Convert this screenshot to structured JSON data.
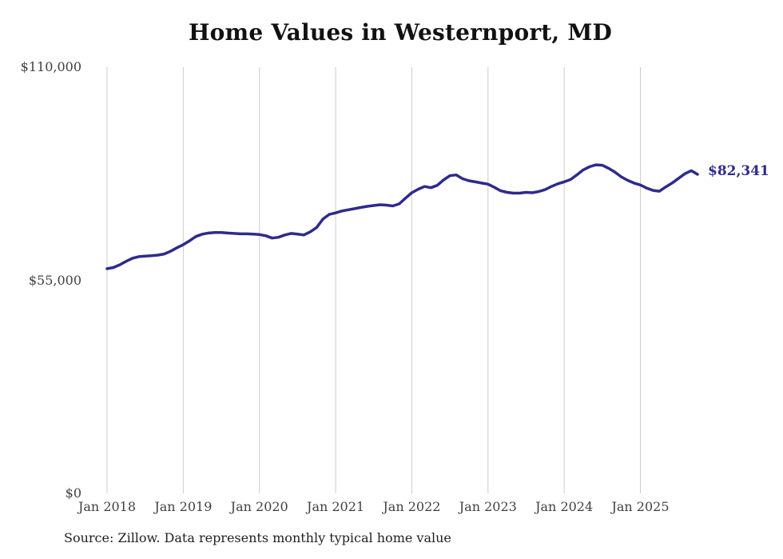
{
  "title": "Home Values in Westernport, MD",
  "end_label": "$82,341",
  "source_note": "Source: Zillow. Data represents monthly typical home value",
  "colors": {
    "background": "#ffffff",
    "line": "#2d2b8c",
    "grid": "#cccccc",
    "title_text": "#111111",
    "axis_text": "#414141",
    "source_text": "#1f1f1f"
  },
  "y_axis": {
    "ticks": [
      {
        "label": "$110,000",
        "value": 110000
      },
      {
        "label": "$55,000",
        "value": 55000
      },
      {
        "label": "$0",
        "value": 0
      }
    ]
  },
  "x_axis": {
    "ticks": [
      "Jan 2018",
      "Jan 2019",
      "Jan 2020",
      "Jan 2021",
      "Jan 2022",
      "Jan 2023",
      "Jan 2024",
      "Jan 2025"
    ]
  },
  "chart_data": {
    "type": "line",
    "title": "Home Values in Westernport, MD",
    "ylim": [
      0,
      110000
    ],
    "grid": "vertical-only",
    "legend": "none",
    "line_color": "#2d2b8c",
    "x": [
      "2018-01",
      "2018-02",
      "2018-03",
      "2018-04",
      "2018-05",
      "2018-06",
      "2018-07",
      "2018-08",
      "2018-09",
      "2018-10",
      "2018-11",
      "2018-12",
      "2019-01",
      "2019-02",
      "2019-03",
      "2019-04",
      "2019-05",
      "2019-06",
      "2019-07",
      "2019-08",
      "2019-09",
      "2019-10",
      "2019-11",
      "2019-12",
      "2020-01",
      "2020-02",
      "2020-03",
      "2020-04",
      "2020-05",
      "2020-06",
      "2020-07",
      "2020-08",
      "2020-09",
      "2020-10",
      "2020-11",
      "2020-12",
      "2021-01",
      "2021-02",
      "2021-03",
      "2021-04",
      "2021-05",
      "2021-06",
      "2021-07",
      "2021-08",
      "2021-09",
      "2021-10",
      "2021-11",
      "2021-12",
      "2022-01",
      "2022-02",
      "2022-03",
      "2022-04",
      "2022-05",
      "2022-06",
      "2022-07",
      "2022-08",
      "2022-09",
      "2022-10",
      "2022-11",
      "2022-12",
      "2023-01",
      "2023-02",
      "2023-03",
      "2023-04",
      "2023-05",
      "2023-06",
      "2023-07",
      "2023-08",
      "2023-09",
      "2023-10",
      "2023-11",
      "2023-12",
      "2024-01",
      "2024-02",
      "2024-03",
      "2024-04",
      "2024-05",
      "2024-06",
      "2024-07",
      "2024-08",
      "2024-09",
      "2024-10",
      "2024-11",
      "2024-12",
      "2025-01",
      "2025-02",
      "2025-03",
      "2025-04",
      "2025-05",
      "2025-06",
      "2025-07",
      "2025-08",
      "2025-09",
      "2025-10"
    ],
    "values": [
      58000,
      58300,
      59000,
      59900,
      60700,
      61100,
      61250,
      61350,
      61500,
      61800,
      62500,
      63400,
      64200,
      65200,
      66300,
      66900,
      67200,
      67350,
      67350,
      67200,
      67100,
      67000,
      67000,
      66900,
      66800,
      66500,
      65900,
      66100,
      66700,
      67100,
      66900,
      66700,
      67500,
      68600,
      70800,
      72000,
      72400,
      72900,
      73200,
      73500,
      73800,
      74100,
      74300,
      74500,
      74400,
      74200,
      74700,
      76200,
      77600,
      78500,
      79200,
      78900,
      79500,
      80900,
      82000,
      82200,
      81200,
      80700,
      80400,
      80100,
      79800,
      79000,
      78100,
      77700,
      77500,
      77500,
      77700,
      77600,
      77900,
      78400,
      79200,
      79900,
      80400,
      81000,
      82200,
      83500,
      84300,
      84800,
      84700,
      83900,
      82900,
      81700,
      80800,
      80100,
      79600,
      78800,
      78200,
      78000,
      79100,
      80100,
      81300,
      82500,
      83300,
      82341
    ],
    "end_annotation": {
      "x": "2025-10",
      "value": 82341,
      "label": "$82,341"
    }
  }
}
